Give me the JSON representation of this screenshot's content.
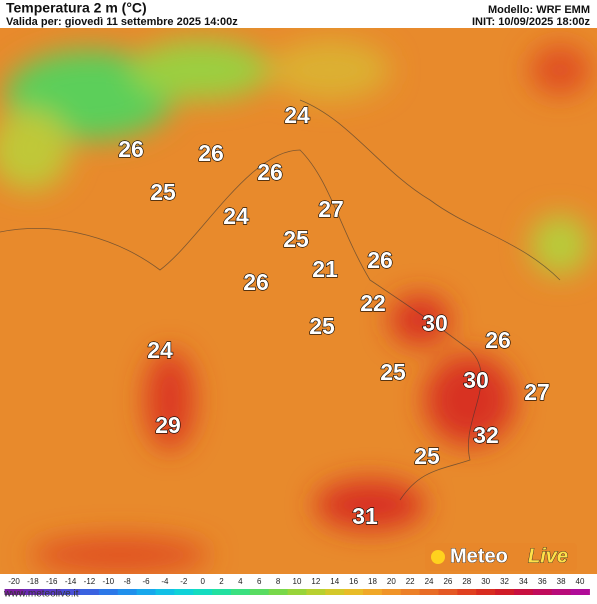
{
  "header": {
    "title": "Temperatura 2 m (°C)",
    "valid": "Valida per: giovedì 11 settembre 2025 14:00z",
    "model": "Modello: WRF EMM",
    "init": "INIT: 10/09/2025 18:00z"
  },
  "labels": [
    24,
    26,
    26,
    26,
    25,
    24,
    27,
    25,
    21,
    26,
    26,
    22,
    25,
    30,
    26,
    24,
    25,
    30,
    27,
    29,
    32,
    25,
    31
  ],
  "colorbar": {
    "ticks": [
      -20,
      -18,
      -16,
      -14,
      -12,
      -10,
      -8,
      -6,
      -4,
      -2,
      0,
      2,
      4,
      6,
      8,
      10,
      12,
      14,
      16,
      18,
      20,
      22,
      24,
      26,
      28,
      30,
      32,
      34,
      36,
      38,
      40
    ],
    "colors": [
      "#7a1fa0",
      "#6a2bb5",
      "#5a3cc8",
      "#4a4fd6",
      "#3a62e0",
      "#2c78e8",
      "#2090ec",
      "#18a8ec",
      "#12c0e6",
      "#10d2d8",
      "#14dcc0",
      "#22e0a0",
      "#3ae080",
      "#58dc62",
      "#78d84a",
      "#98d43a",
      "#b8d030",
      "#d4c82a",
      "#e8bc28",
      "#f0a828",
      "#f09428",
      "#ec8028",
      "#e86c26",
      "#e45824",
      "#e04020",
      "#d82c20",
      "#d01c28",
      "#c81040",
      "#c00c5c",
      "#b80c7a",
      "#b00c98"
    ]
  },
  "footer": {
    "site": "www.meteolive.it",
    "logo1": "Meteo",
    "logo2": "Live"
  }
}
